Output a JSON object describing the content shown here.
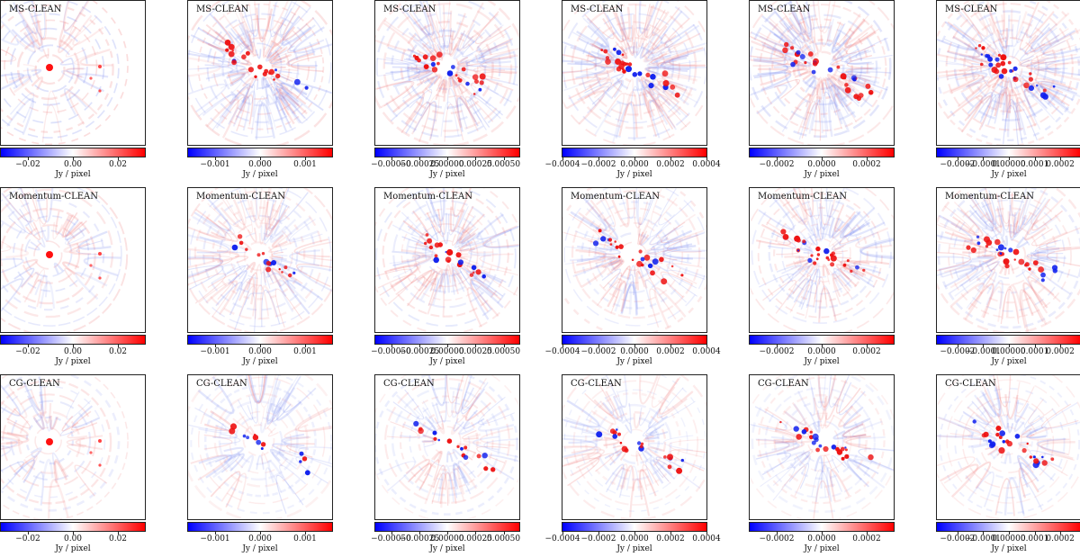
{
  "chart_data": {
    "type": "heatmap",
    "colormap": "bwr",
    "cbar_label": "Jy / pixel",
    "rows": [
      {
        "title": "MS-CLEAN",
        "panels": [
          {
            "vmin": -0.032,
            "vmax": 0.032,
            "ticks": [
              -0.02,
              0.0,
              0.02
            ],
            "tick_labels": [
              "−0.02",
              "0.00",
              "0.02"
            ]
          },
          {
            "vmin": -0.0016,
            "vmax": 0.0016,
            "ticks": [
              -0.001,
              0.0,
              0.001
            ],
            "tick_labels": [
              "−0.001",
              "0.000",
              "0.001"
            ]
          },
          {
            "vmin": -0.00064,
            "vmax": 0.00064,
            "ticks": [
              -0.0005,
              -0.00025,
              0.0,
              0.00025,
              0.0005
            ],
            "tick_labels": [
              "−0.00050",
              "−0.00025",
              "0.00000",
              "0.00025",
              "0.00050"
            ]
          },
          {
            "vmin": -0.0004,
            "vmax": 0.0004,
            "ticks": [
              -0.0004,
              -0.0002,
              0.0,
              0.0002,
              0.0004
            ],
            "tick_labels": [
              "−0.0004",
              "−0.0002",
              "0.0000",
              "0.0002",
              "0.0004"
            ]
          },
          {
            "vmin": -0.00032,
            "vmax": 0.00032,
            "ticks": [
              -0.0002,
              0.0,
              0.0002
            ],
            "tick_labels": [
              "−0.0002",
              "0.0000",
              "0.0002"
            ]
          },
          {
            "vmin": -0.00028,
            "vmax": 0.00028,
            "ticks": [
              -0.0002,
              -0.0001,
              0.0,
              0.0001,
              0.0002
            ],
            "tick_labels": [
              "−0.0002",
              "−0.0001",
              "0.00000",
              "0.0001",
              "0.0002"
            ]
          }
        ]
      },
      {
        "title": "Momentum-CLEAN",
        "panels": [
          {
            "vmin": -0.032,
            "vmax": 0.032,
            "ticks": [
              -0.02,
              0.0,
              0.02
            ],
            "tick_labels": [
              "−0.02",
              "0.00",
              "0.02"
            ]
          },
          {
            "vmin": -0.0016,
            "vmax": 0.0016,
            "ticks": [
              -0.001,
              0.0,
              0.001
            ],
            "tick_labels": [
              "−0.001",
              "0.000",
              "0.001"
            ]
          },
          {
            "vmin": -0.00064,
            "vmax": 0.00064,
            "ticks": [
              -0.0005,
              -0.00025,
              0.0,
              0.00025,
              0.0005
            ],
            "tick_labels": [
              "−0.00050",
              "−0.00025",
              "0.00000",
              "0.00025",
              "0.00050"
            ]
          },
          {
            "vmin": -0.0004,
            "vmax": 0.0004,
            "ticks": [
              -0.0004,
              -0.0002,
              0.0,
              0.0002,
              0.0004
            ],
            "tick_labels": [
              "−0.0004",
              "−0.0002",
              "0.0000",
              "0.0002",
              "0.0004"
            ]
          },
          {
            "vmin": -0.00032,
            "vmax": 0.00032,
            "ticks": [
              -0.0002,
              0.0,
              0.0002
            ],
            "tick_labels": [
              "−0.0002",
              "0.0000",
              "0.0002"
            ]
          },
          {
            "vmin": -0.00028,
            "vmax": 0.00028,
            "ticks": [
              -0.0002,
              -0.0001,
              0.0,
              0.0001,
              0.0002
            ],
            "tick_labels": [
              "−0.0002",
              "−0.0001",
              "0.00000",
              "0.0001",
              "0.0002"
            ]
          }
        ]
      },
      {
        "title": "CG-CLEAN",
        "panels": [
          {
            "vmin": -0.032,
            "vmax": 0.032,
            "ticks": [
              -0.02,
              0.0,
              0.02
            ],
            "tick_labels": [
              "−0.02",
              "0.00",
              "0.02"
            ]
          },
          {
            "vmin": -0.0016,
            "vmax": 0.0016,
            "ticks": [
              -0.001,
              0.0,
              0.001
            ],
            "tick_labels": [
              "−0.001",
              "0.000",
              "0.001"
            ]
          },
          {
            "vmin": -0.00064,
            "vmax": 0.00064,
            "ticks": [
              -0.0005,
              -0.00025,
              0.0,
              0.00025,
              0.0005
            ],
            "tick_labels": [
              "−0.00050",
              "−0.00025",
              "0.00000",
              "0.00025",
              "0.00050"
            ]
          },
          {
            "vmin": -0.0004,
            "vmax": 0.0004,
            "ticks": [
              -0.0004,
              -0.0002,
              0.0,
              0.0002,
              0.0004
            ],
            "tick_labels": [
              "−0.0004",
              "−0.0002",
              "0.0000",
              "0.0002",
              "0.0004"
            ]
          },
          {
            "vmin": -0.00032,
            "vmax": 0.00032,
            "ticks": [
              -0.0002,
              0.0,
              0.0002
            ],
            "tick_labels": [
              "−0.0002",
              "0.0000",
              "0.0002"
            ]
          },
          {
            "vmin": -0.00028,
            "vmax": 0.00028,
            "ticks": [
              -0.0002,
              -0.0001,
              0.0,
              0.0001,
              0.0002
            ],
            "tick_labels": [
              "−0.0002",
              "−0.0001",
              "0.00000",
              "0.0001",
              "0.0002"
            ]
          }
        ]
      }
    ]
  }
}
